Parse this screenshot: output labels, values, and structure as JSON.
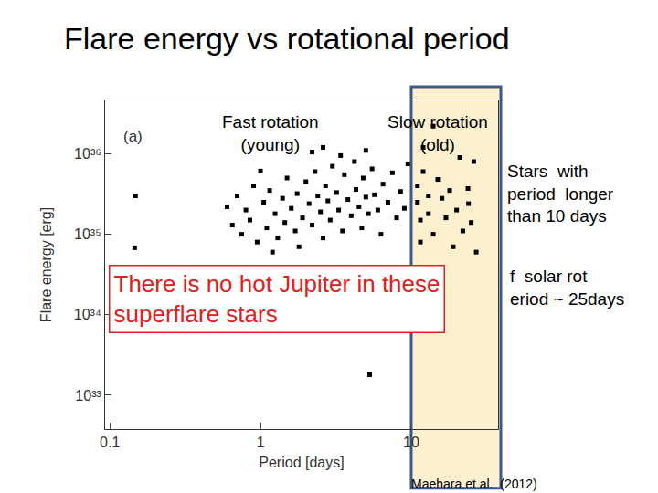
{
  "chart_data": {
    "type": "scatter",
    "title": "Flare energy vs rotational period",
    "x_label": "Period [days]",
    "y_label": "Flare energy [erg]",
    "color": "#000000",
    "marker": "square",
    "log": true,
    "xlim": [
      0.093,
      37.7
    ],
    "ylim": [
      3.8e+32,
      4.6e+36
    ],
    "xticks": [
      0.1,
      1,
      10
    ],
    "yticks": [
      {
        "value": 1e+33,
        "label": "10³³"
      },
      {
        "value": 1e+34,
        "label": "10³⁴"
      },
      {
        "value": 1e+35,
        "label": "10³⁵"
      },
      {
        "value": 1e+36,
        "label": "10³⁶"
      }
    ],
    "x": [
      0.148,
      0.146,
      1.0,
      2.2,
      5.3,
      0.6,
      0.65,
      0.7,
      0.75,
      0.8,
      0.85,
      0.9,
      0.95,
      1.05,
      1.1,
      1.15,
      1.2,
      1.25,
      1.3,
      1.4,
      1.45,
      1.5,
      1.6,
      1.7,
      1.75,
      1.8,
      1.9,
      2.0,
      2.1,
      2.2,
      2.3,
      2.4,
      2.5,
      2.6,
      2.7,
      2.8,
      2.9,
      3.0,
      3.2,
      3.3,
      3.5,
      3.6,
      3.8,
      4.0,
      4.2,
      4.3,
      4.5,
      4.7,
      4.8,
      5.0,
      5.2,
      5.5,
      5.7,
      6.0,
      6.3,
      6.5,
      7.0,
      7.5,
      8.0,
      8.5,
      9.0,
      9.5,
      2.6,
      3.4,
      5.0,
      11,
      11,
      11.5,
      11.5,
      12,
      12,
      13,
      13,
      14,
      14,
      15,
      15.2,
      16,
      17,
      18,
      19,
      20,
      21,
      22,
      23.8,
      24,
      25,
      26,
      27
    ],
    "values": [
      3e+35,
      6.8e+34,
      6.1e+35,
      1.05e+36,
      1.8e+33,
      2.2e+35,
      1.3e+35,
      3e+35,
      1e+35,
      2e+35,
      1.5e+35,
      4e+35,
      8e+34,
      2.5e+35,
      1.2e+35,
      3.5e+35,
      6e+34,
      1.8e+35,
      9e+34,
      2.8e+35,
      1.4e+35,
      5e+35,
      2.1e+35,
      1.1e+35,
      3.2e+35,
      7e+34,
      1.6e+35,
      4.5e+35,
      2.4e+35,
      1.3e+35,
      6e+35,
      3e+35,
      1.9e+35,
      9e+34,
      4e+35,
      2.6e+35,
      1.5e+35,
      7e+35,
      3.3e+35,
      2e+35,
      1.1e+35,
      5.5e+35,
      2.7e+35,
      1.7e+35,
      8e+35,
      3.6e+35,
      2.2e+35,
      1.2e+35,
      5e+35,
      2.9e+35,
      1.8e+35,
      6.5e+35,
      3.1e+35,
      2e+35,
      1e+35,
      4.2e+35,
      2.5e+35,
      5.8e+35,
      1.6e+35,
      3.4e+35,
      2.1e+35,
      7.5e+35,
      1.2e+36,
      9.5e+35,
      1.1e+36,
      4e+35,
      2.5e+35,
      1.5e+35,
      8e+34,
      6e+35,
      1.2e+36,
      3e+35,
      1.8e+35,
      1e+35,
      2.2e+36,
      4.8e+35,
      4.8e+35,
      2.8e+35,
      1.6e+35,
      3.5e+35,
      7e+34,
      2e+35,
      9e+35,
      1.1e+35,
      3.7e+35,
      2.4e+35,
      1.4e+35,
      8e+35,
      6e+34
    ],
    "annotations": [
      {
        "text": "(a)"
      },
      {
        "text": "Fast rotation\n(young)"
      },
      {
        "text": "Slow rotation\n(old)"
      },
      {
        "text": "Stars  with\nperiod  longer\nthan 10 days"
      },
      {
        "text": "f  solar rot\neriod ~ 25days"
      },
      {
        "text": "There is no hot Jupiter in these\nsuperflare stars"
      },
      {
        "text": "Maehara et al.  (2012)"
      }
    ]
  }
}
